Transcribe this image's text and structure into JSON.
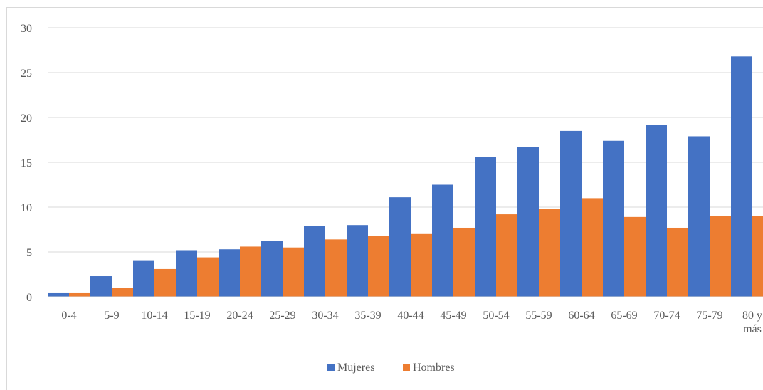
{
  "chart_data": {
    "type": "bar",
    "categories": [
      "0-4",
      "5-9",
      "10-14",
      "15-19",
      "20-24",
      "25-29",
      "30-34",
      "35-39",
      "40-44",
      "45-49",
      "50-54",
      "55-59",
      "60-64",
      "65-69",
      "70-74",
      "75-79",
      "80 y más"
    ],
    "category_lines": [
      [
        "0-4"
      ],
      [
        "5-9"
      ],
      [
        "10-14"
      ],
      [
        "15-19"
      ],
      [
        "20-24"
      ],
      [
        "25-29"
      ],
      [
        "30-34"
      ],
      [
        "35-39"
      ],
      [
        "40-44"
      ],
      [
        "45-49"
      ],
      [
        "50-54"
      ],
      [
        "55-59"
      ],
      [
        "60-64"
      ],
      [
        "65-69"
      ],
      [
        "70-74"
      ],
      [
        "75-79"
      ],
      [
        "80 y",
        "más"
      ]
    ],
    "series": [
      {
        "name": "Mujeres",
        "color": "#4472c4",
        "values": [
          0.4,
          2.3,
          4.0,
          5.2,
          5.3,
          6.2,
          7.9,
          8.0,
          11.1,
          12.5,
          15.6,
          16.7,
          18.5,
          17.4,
          19.2,
          17.9,
          26.8
        ]
      },
      {
        "name": "Hombres",
        "color": "#ed7d31",
        "values": [
          0.4,
          1.0,
          3.1,
          4.4,
          5.6,
          5.5,
          6.4,
          6.8,
          7.0,
          7.7,
          9.2,
          9.8,
          11.0,
          8.9,
          7.7,
          9.0,
          9.0
        ]
      }
    ],
    "ylim": [
      0,
      30
    ],
    "yticks": [
      0,
      5,
      10,
      15,
      20,
      25,
      30
    ],
    "grid": true,
    "legend_position": "bottom-center"
  }
}
